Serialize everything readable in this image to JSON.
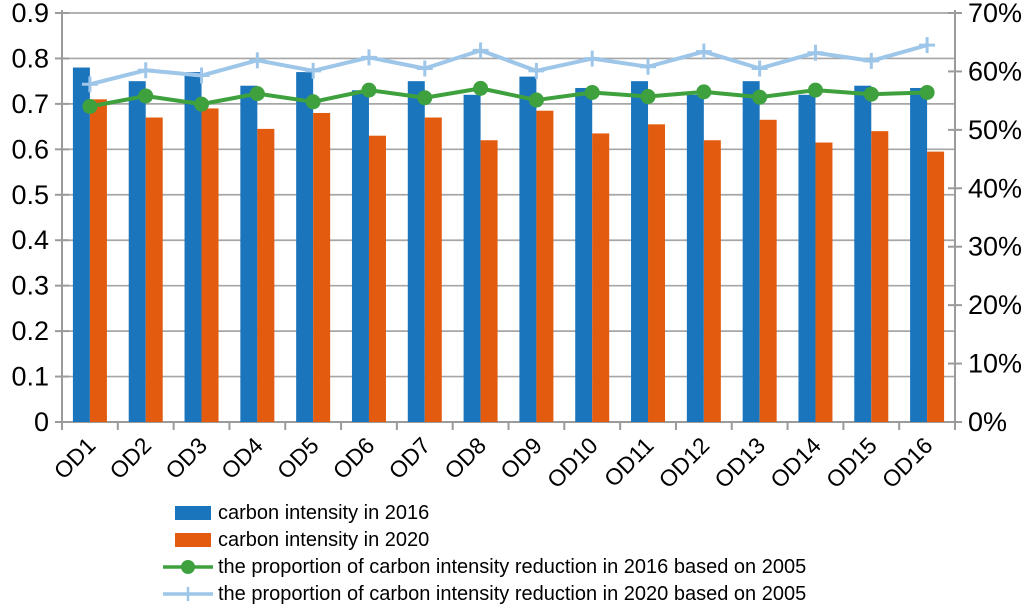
{
  "chart_data": {
    "type": "combo-bar-line",
    "title": "",
    "categories": [
      "OD1",
      "OD2",
      "OD3",
      "OD4",
      "OD5",
      "OD6",
      "OD7",
      "OD8",
      "OD9",
      "OD10",
      "OD11",
      "OD12",
      "OD13",
      "OD14",
      "OD15",
      "OD16"
    ],
    "series": [
      {
        "name": "carbon intensity in 2016",
        "type": "bar",
        "axis": "left",
        "color": "#1B75BC",
        "values": [
          0.78,
          0.75,
          0.77,
          0.74,
          0.77,
          0.73,
          0.75,
          0.72,
          0.76,
          0.735,
          0.75,
          0.72,
          0.75,
          0.72,
          0.74,
          0.735
        ]
      },
      {
        "name": "carbon intensity in 2020",
        "type": "bar",
        "axis": "left",
        "color": "#E25B0E",
        "values": [
          0.71,
          0.67,
          0.69,
          0.645,
          0.68,
          0.63,
          0.67,
          0.62,
          0.685,
          0.635,
          0.655,
          0.62,
          0.665,
          0.615,
          0.64,
          0.595
        ]
      },
      {
        "name": "the proportion of carbon intensity reduction in 2016 based on 2005",
        "type": "line",
        "marker": "circle",
        "axis": "right",
        "color": "#3EA13E",
        "values": [
          54.0,
          55.8,
          54.4,
          56.2,
          54.8,
          56.8,
          55.5,
          57.1,
          55.1,
          56.4,
          55.7,
          56.5,
          55.6,
          56.8,
          56.1,
          56.4
        ]
      },
      {
        "name": "the proportion of carbon intensity reduction in 2020 based on 2005",
        "type": "line",
        "marker": "plus",
        "axis": "right",
        "color": "#9DC6E9",
        "values": [
          57.8,
          60.2,
          59.3,
          61.9,
          60.1,
          62.4,
          60.5,
          63.6,
          60.1,
          62.2,
          60.8,
          63.4,
          60.5,
          63.2,
          61.8,
          64.5
        ]
      }
    ],
    "left_axis": {
      "min": 0,
      "max": 0.9,
      "step": 0.1,
      "tick_labels": [
        "0.9",
        "0.8",
        "0.7",
        "0.6",
        "0.5",
        "0.4",
        "0.3",
        "0.2",
        "0.1",
        "0"
      ]
    },
    "right_axis": {
      "min": 0,
      "max": 70,
      "step": 10,
      "tick_labels": [
        "70%",
        "60%",
        "50%",
        "40%",
        "30%",
        "20%",
        "10%",
        "0%"
      ]
    },
    "grid": true,
    "legend_position": "bottom-left",
    "style": {
      "grid_color": "#A6A6A6",
      "axis_color": "#9B9B9B",
      "text_color": "#000000",
      "background": "#FFFFFF"
    }
  }
}
